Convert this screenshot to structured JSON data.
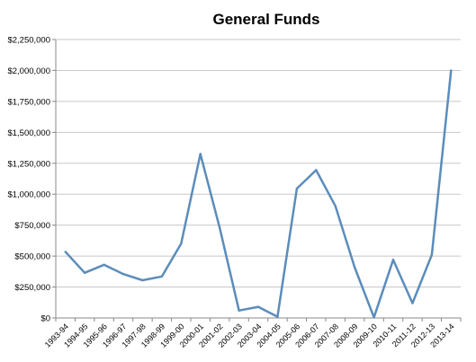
{
  "chart_data": {
    "type": "line",
    "title": "General Funds",
    "xlabel": "",
    "ylabel": "",
    "categories": [
      "1993-94",
      "1994-95",
      "1995-96",
      "1996-97",
      "1997-98",
      "1998-99",
      "1999-00",
      "2000-01",
      "2001-02",
      "2002-03",
      "2003-04",
      "2004-05",
      "2005-06",
      "2006-07",
      "2007-08",
      "2008-09",
      "2009-10",
      "2010-11",
      "2011-12",
      "2012-13",
      "2013-14"
    ],
    "values": [
      535000,
      365000,
      430000,
      355000,
      305000,
      335000,
      600000,
      1325000,
      730000,
      60000,
      90000,
      10000,
      1045000,
      1195000,
      905000,
      410000,
      5000,
      470000,
      120000,
      510000,
      2000000
    ],
    "ylim": [
      0,
      2250000
    ],
    "yticks": [
      "$0",
      "$250,000",
      "$500,000",
      "$750,000",
      "$1,000,000",
      "$1,250,000",
      "$1,500,000",
      "$1,750,000",
      "$2,000,000",
      "$2,250,000"
    ],
    "grid": true,
    "line_color": "#5B8DBB",
    "grid_color": "#c8c8c8",
    "axis_color": "#888888"
  }
}
